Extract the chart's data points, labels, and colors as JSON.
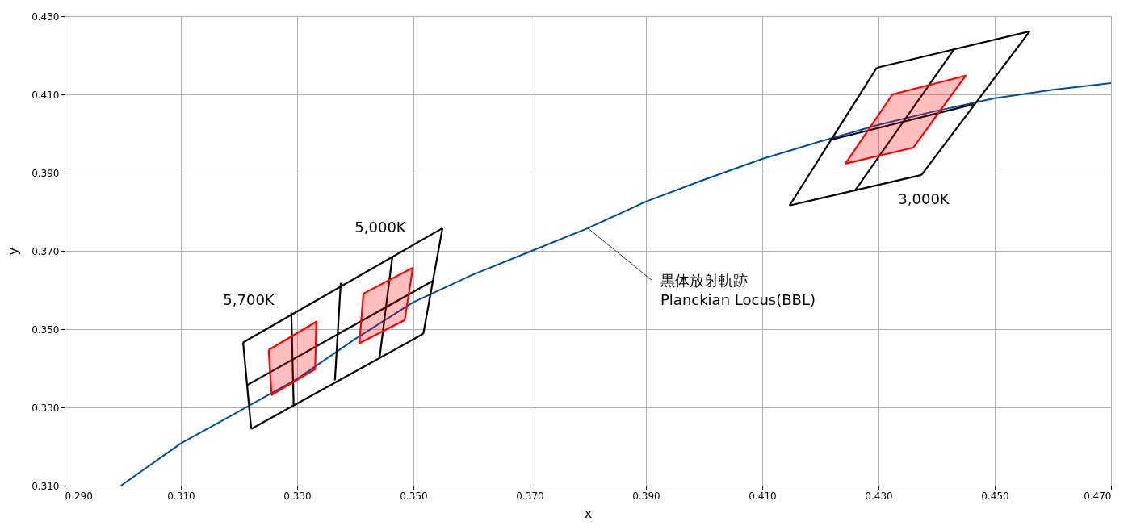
{
  "chart_data": {
    "type": "line",
    "xlabel": "x",
    "ylabel": "y",
    "xlim": [
      0.29,
      0.47
    ],
    "ylim": [
      0.31,
      0.43
    ],
    "xticks": [
      {
        "value": 0.29,
        "label": "0.290"
      },
      {
        "value": 0.31,
        "label": "0.310"
      },
      {
        "value": 0.33,
        "label": "0.330"
      },
      {
        "value": 0.35,
        "label": "0.350"
      },
      {
        "value": 0.37,
        "label": "0.370"
      },
      {
        "value": 0.39,
        "label": "0.390"
      },
      {
        "value": 0.41,
        "label": "0.410"
      },
      {
        "value": 0.43,
        "label": "0.430"
      },
      {
        "value": 0.45,
        "label": "0.450"
      },
      {
        "value": 0.47,
        "label": "0.470"
      }
    ],
    "yticks": [
      {
        "value": 0.31,
        "label": "0.310"
      },
      {
        "value": 0.33,
        "label": "0.330"
      },
      {
        "value": 0.35,
        "label": "0.350"
      },
      {
        "value": 0.37,
        "label": "0.370"
      },
      {
        "value": 0.39,
        "label": "0.390"
      },
      {
        "value": 0.41,
        "label": "0.410"
      },
      {
        "value": 0.43,
        "label": "0.430"
      }
    ],
    "grid": true,
    "marker": "none",
    "line_style": "solid",
    "series": [
      {
        "color": "#004c99",
        "x": [
          0.2997,
          0.31,
          0.32,
          0.33,
          0.34,
          0.35,
          0.36,
          0.37,
          0.38,
          0.39,
          0.4,
          0.41,
          0.42,
          0.43,
          0.44,
          0.45,
          0.46,
          0.47
        ],
        "values": [
          0.31,
          0.3208,
          0.329,
          0.3373,
          0.3475,
          0.3569,
          0.3638,
          0.3698,
          0.3758,
          0.3826,
          0.3882,
          0.3935,
          0.398,
          0.4022,
          0.4058,
          0.409,
          0.4112,
          0.4129
        ]
      },
      {
        "color": "#000000",
        "x": [
          0.4147,
          0.4297
        ],
        "values": [
          0.3816,
          0.4168
        ]
      },
      {
        "color": "#000000",
        "x": [
          0.4297,
          0.456
        ],
        "values": [
          0.4168,
          0.4261
        ]
      },
      {
        "color": "#000000",
        "x": [
          0.4374,
          0.456
        ],
        "values": [
          0.3894,
          0.4261
        ]
      },
      {
        "color": "#000000",
        "x": [
          0.4147,
          0.4374
        ],
        "values": [
          0.3816,
          0.3894
        ]
      },
      {
        "color": "#000000",
        "x": [
          0.426,
          0.4429
        ],
        "values": [
          0.3855,
          0.4213
        ]
      },
      {
        "color": "#000000",
        "x": [
          0.4221,
          0.4464
        ],
        "values": [
          0.3985,
          0.4075
        ]
      },
      {
        "type": "area",
        "color": "#ff0000",
        "x": [
          0.4324,
          0.445,
          0.436,
          0.4243,
          0.4324
        ],
        "values": [
          0.41,
          0.4148,
          0.3964,
          0.3923,
          0.41
        ]
      },
      {
        "color": "#000000",
        "x": [
          0.3207,
          0.3221
        ],
        "values": [
          0.3466,
          0.3245
        ]
      },
      {
        "color": "#000000",
        "x": [
          0.3207,
          0.355
        ],
        "values": [
          0.3466,
          0.3758
        ]
      },
      {
        "color": "#000000",
        "x": [
          0.3221,
          0.3517
        ],
        "values": [
          0.3245,
          0.3488
        ]
      },
      {
        "color": "#000000",
        "x": [
          0.3517,
          0.355
        ],
        "values": [
          0.3488,
          0.3758
        ]
      },
      {
        "color": "#000000",
        "x": [
          0.3214,
          0.3532
        ],
        "values": [
          0.3357,
          0.3622
        ]
      },
      {
        "color": "#000000",
        "x": [
          0.329,
          0.3294
        ],
        "values": [
          0.3542,
          0.3305
        ]
      },
      {
        "color": "#000000",
        "x": [
          0.3375,
          0.3365
        ],
        "values": [
          0.3618,
          0.3369
        ]
      },
      {
        "color": "#000000",
        "x": [
          0.3464,
          0.3442
        ],
        "values": [
          0.3688,
          0.3429
        ]
      },
      {
        "type": "area",
        "color": "#ff0000",
        "x": [
          0.3251,
          0.3333,
          0.3331,
          0.3256,
          0.3251
        ],
        "values": [
          0.3447,
          0.3519,
          0.3398,
          0.3332,
          0.3447
        ]
      },
      {
        "type": "area",
        "color": "#ff0000",
        "x": [
          0.3414,
          0.3499,
          0.3485,
          0.3407,
          0.3414
        ],
        "values": [
          0.3591,
          0.3657,
          0.3523,
          0.3464,
          0.3591
        ]
      }
    ],
    "annotations": [
      {
        "text": "黒体放射軌跡\nPlanckian Locus(BBL)",
        "x": 0.38,
        "y": 0.3758
      },
      "5,700K",
      "5,000K",
      "3,000K"
    ]
  }
}
